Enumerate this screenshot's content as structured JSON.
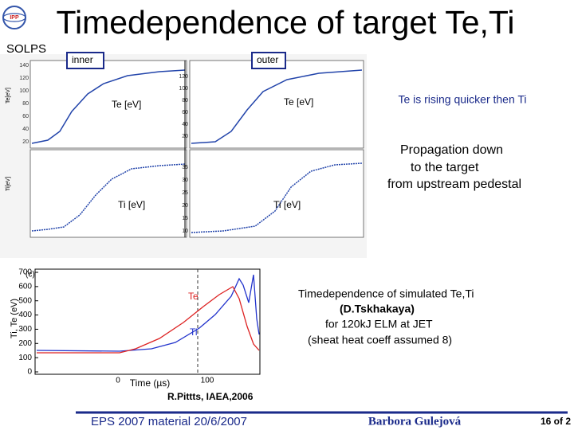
{
  "header": {
    "title": "Timedependence of target Te,Ti",
    "tag": "SOLPS",
    "logo": "IPP"
  },
  "top_figure": {
    "inner": "inner",
    "outer": "outer",
    "te_left": "Te [eV]",
    "te_right": "Te [eV]",
    "ti_left": "Ti [eV]",
    "ti_right": "Ti [eV]",
    "left_te_ticks": [
      "140",
      "120",
      "100",
      "80",
      "60",
      "40",
      "20"
    ],
    "right_te_ticks": [
      "120",
      "100",
      "80",
      "60",
      "40",
      "20"
    ],
    "right_ti_ticks": [
      "35",
      "30",
      "25",
      "20",
      "15",
      "10"
    ],
    "left_y_label": "Te[eV]",
    "left_y2_label": "Ti[eV]"
  },
  "notes": [
    "Te is rising quicker then Ti",
    "Propagation down",
    "to the target",
    "from upstream pedestal"
  ],
  "sim_plot": {
    "panel": "(c)",
    "y_label": "Ti, Te (eV)",
    "x_label": "Time (µs)",
    "yticks": [
      "700",
      "600",
      "500",
      "400",
      "300",
      "200",
      "100",
      "0"
    ],
    "xticks": [
      "0",
      "100"
    ],
    "te": "Te",
    "ti": "Ti"
  },
  "sim_caption": [
    "Timedependence of simulated Te,Ti",
    "(D.Tskhakaya)",
    "for 120kJ ELM at JET",
    "(sheat heat coeff assumed 8)"
  ],
  "credit": "R.Pittts, IAEA,2006",
  "footer": {
    "event": "EPS 2007 material  20/6/2007",
    "author": "Barbora Gulejová",
    "page": "16 of 2"
  }
}
